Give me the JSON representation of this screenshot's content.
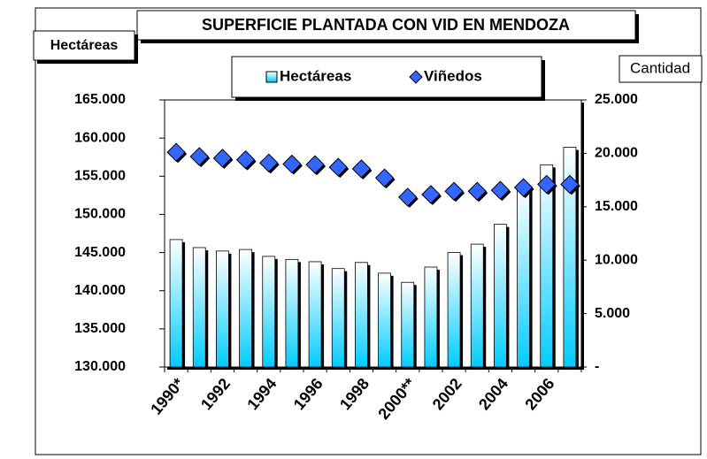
{
  "chart_data": {
    "type": "bar_line",
    "title": "SUPERFICIE PLANTADA CON VID EN MENDOZA",
    "y_label": "Hectáreas",
    "y2_label": "Cantidad",
    "categories": [
      "1990*",
      null,
      "1992",
      null,
      "1994",
      null,
      "1996",
      null,
      "1998",
      null,
      "2000**",
      null,
      "2002",
      null,
      "2004",
      null,
      "2006",
      null
    ],
    "series": [
      {
        "name": "Hectáreas",
        "type": "bar",
        "color": "#00ccff",
        "values": [
          146700,
          145650,
          145200,
          145400,
          144500,
          144100,
          143800,
          142900,
          143700,
          142300,
          141100,
          143100,
          145000,
          146100,
          148700,
          153500,
          156500,
          158800
        ]
      },
      {
        "name": "Viñedos",
        "type": "marker",
        "axis": "y2",
        "color": "#3366ff",
        "values": [
          20100,
          19700,
          19550,
          19400,
          19100,
          19000,
          18950,
          18700,
          18550,
          17700,
          15900,
          16150,
          16450,
          16450,
          16550,
          16800,
          17100,
          17100
        ]
      }
    ],
    "ylim": [
      130000,
      165000
    ],
    "yticks": [
      {
        "value": 130000,
        "label": "130.000"
      },
      {
        "value": 135000,
        "label": "135.000"
      },
      {
        "value": 140000,
        "label": "140.000"
      },
      {
        "value": 145000,
        "label": "145.000"
      },
      {
        "value": 150000,
        "label": "150.000"
      },
      {
        "value": 155000,
        "label": "155.000"
      },
      {
        "value": 160000,
        "label": "160.000"
      },
      {
        "value": 165000,
        "label": "165.000"
      }
    ],
    "y2lim": [
      0,
      25000
    ],
    "y2ticks": [
      {
        "value": 0,
        "label": "-"
      },
      {
        "value": 5000,
        "label": "5.000"
      },
      {
        "value": 10000,
        "label": "10.000"
      },
      {
        "value": 15000,
        "label": "15.000"
      },
      {
        "value": 20000,
        "label": "20.000"
      },
      {
        "value": 25000,
        "label": "25.000"
      }
    ],
    "legend": "top"
  }
}
